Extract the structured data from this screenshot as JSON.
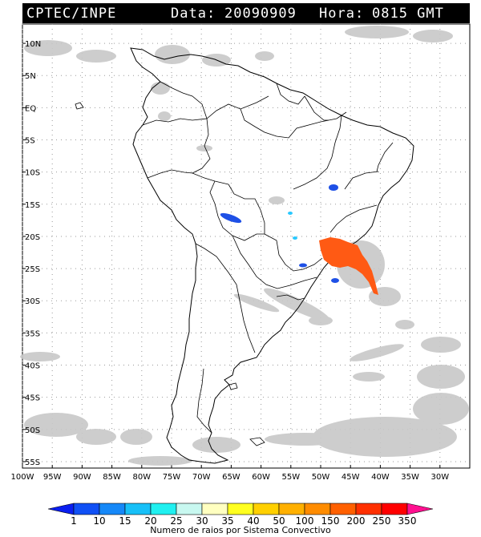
{
  "header": {
    "source": "CPTEC/INPE",
    "date_label": "Data:",
    "date_value": "20090909",
    "hour_label": "Hora:",
    "hour_value": "0815 GMT"
  },
  "map": {
    "lon_range": [
      -100,
      -25
    ],
    "lat_range": [
      -56,
      13
    ],
    "lat_ticks": [
      "10N",
      "5N",
      "EQ",
      "5S",
      "10S",
      "15S",
      "20S",
      "25S",
      "30S",
      "35S",
      "40S",
      "45S",
      "50S",
      "55S"
    ],
    "lon_ticks": [
      "100W",
      "95W",
      "90W",
      "85W",
      "80W",
      "75W",
      "70W",
      "65W",
      "60W",
      "55W",
      "50W",
      "45W",
      "40W",
      "35W",
      "30W"
    ],
    "colors": {
      "land_outline": "#000000",
      "cloud_gray": "#c8c8c8",
      "grid_dot": "#9a9a9a",
      "storm_orange": "#ff5a14",
      "storm_blue": "#1e50e6",
      "storm_cyan": "#28c8ff"
    }
  },
  "colorbar": {
    "labels": [
      "1",
      "10",
      "15",
      "20",
      "25",
      "30",
      "35",
      "40",
      "50",
      "100",
      "150",
      "200",
      "250",
      "350"
    ],
    "colors": [
      "#0a1ef0",
      "#1050f5",
      "#1688f8",
      "#18c0f8",
      "#20f0f0",
      "#c8f8f0",
      "#ffffc0",
      "#ffff20",
      "#ffd000",
      "#ffb000",
      "#ff8c00",
      "#ff6000",
      "#ff3000",
      "#ff0000",
      "#ff1090"
    ],
    "title": "Numero de raios por Sistema Convectivo"
  }
}
